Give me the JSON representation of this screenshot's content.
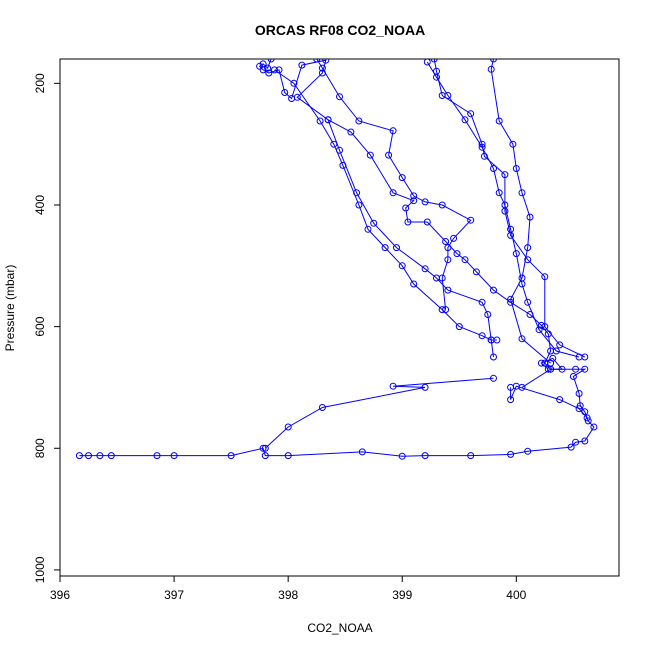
{
  "chart_data": {
    "type": "line",
    "title": "ORCAS RF08 CO2_NOAA",
    "xlabel": "CO2_NOAA",
    "ylabel": "Pressure (mbar)",
    "xlim": [
      396.0,
      400.9
    ],
    "ylim": [
      1010,
      160
    ],
    "y_reversed": true,
    "xticks": [
      396,
      397,
      398,
      399,
      400
    ],
    "xtick_labels": [
      "396",
      "397",
      "398",
      "399",
      "400"
    ],
    "yticks": [
      200,
      400,
      600,
      800,
      1000
    ],
    "ytick_labels": [
      "200",
      "400",
      "600",
      "800",
      "1000"
    ],
    "grid": false,
    "legend": "none",
    "series_color": "#0000ff",
    "marker": "open-circle",
    "points": [
      [
        397.85,
        160
      ],
      [
        397.82,
        175
      ],
      [
        397.78,
        168
      ],
      [
        397.75,
        172
      ],
      [
        397.78,
        178
      ],
      [
        397.83,
        183
      ],
      [
        397.92,
        178
      ],
      [
        397.97,
        215
      ],
      [
        398.03,
        225
      ],
      [
        398.12,
        170
      ],
      [
        398.33,
        162
      ],
      [
        398.3,
        183
      ],
      [
        398.08,
        223
      ],
      [
        398.35,
        260
      ],
      [
        398.55,
        280
      ],
      [
        398.72,
        318
      ],
      [
        398.92,
        380
      ],
      [
        399.1,
        393
      ],
      [
        399.03,
        405
      ],
      [
        399.05,
        428
      ],
      [
        399.22,
        428
      ],
      [
        399.38,
        460
      ],
      [
        399.48,
        480
      ],
      [
        399.55,
        490
      ],
      [
        399.65,
        510
      ],
      [
        399.8,
        540
      ],
      [
        399.95,
        560
      ],
      [
        400.12,
        580
      ],
      [
        400.22,
        598
      ],
      [
        400.28,
        612
      ],
      [
        400.3,
        640
      ],
      [
        400.25,
        660
      ],
      [
        400.3,
        670
      ],
      [
        400.52,
        670
      ],
      [
        400.6,
        670
      ],
      [
        400.5,
        682
      ],
      [
        400.55,
        710
      ],
      [
        400.56,
        730
      ],
      [
        400.6,
        740
      ],
      [
        400.63,
        755
      ],
      [
        400.68,
        765
      ],
      [
        400.6,
        788
      ],
      [
        400.52,
        790
      ],
      [
        400.48,
        798
      ],
      [
        400.1,
        805
      ],
      [
        399.95,
        810
      ],
      [
        399.6,
        812
      ],
      [
        399.2,
        812
      ],
      [
        399.0,
        813
      ],
      [
        398.65,
        806
      ],
      [
        398.0,
        812
      ],
      [
        397.8,
        812
      ],
      [
        397.78,
        800
      ],
      [
        397.5,
        812
      ],
      [
        397.0,
        812
      ],
      [
        396.85,
        812
      ],
      [
        396.45,
        812
      ],
      [
        396.35,
        812
      ],
      [
        396.25,
        812
      ],
      [
        396.17,
        812
      ]
    ],
    "profile_lines": [
      [
        [
          400.55,
          650
        ],
        [
          400.35,
          640
        ],
        [
          400.2,
          605
        ],
        [
          400.1,
          560
        ],
        [
          400.05,
          530
        ],
        [
          400.0,
          480
        ],
        [
          399.95,
          440
        ],
        [
          399.9,
          400
        ],
        [
          399.85,
          380
        ],
        [
          399.8,
          340
        ],
        [
          399.7,
          305
        ],
        [
          399.55,
          260
        ],
        [
          399.4,
          220
        ],
        [
          399.3,
          190
        ],
        [
          399.22,
          165
        ]
      ],
      [
        [
          400.3,
          660
        ],
        [
          400.05,
          620
        ],
        [
          399.95,
          555
        ],
        [
          400.05,
          520
        ],
        [
          400.1,
          470
        ],
        [
          400.12,
          420
        ],
        [
          400.05,
          380
        ],
        [
          400.0,
          340
        ],
        [
          399.97,
          300
        ],
        [
          399.85,
          262
        ],
        [
          399.78,
          177
        ],
        [
          399.8,
          160
        ]
      ],
      [
        [
          400.6,
          650
        ],
        [
          400.38,
          630
        ],
        [
          400.25,
          600
        ],
        [
          400.25,
          518
        ],
        [
          400.1,
          490
        ],
        [
          399.95,
          450
        ],
        [
          399.9,
          410
        ],
        [
          399.9,
          350
        ],
        [
          399.72,
          320
        ],
        [
          399.7,
          300
        ],
        [
          399.6,
          250
        ],
        [
          399.35,
          220
        ],
        [
          399.3,
          180
        ],
        [
          399.28,
          160
        ]
      ],
      [
        [
          399.95,
          700
        ],
        [
          399.95,
          720
        ],
        [
          400.0,
          698
        ],
        [
          400.38,
          720
        ],
        [
          400.55,
          735
        ],
        [
          400.62,
          750
        ]
      ],
      [
        [
          399.8,
          685
        ],
        [
          398.92,
          698
        ],
        [
          399.2,
          700
        ],
        [
          398.3,
          733
        ],
        [
          398.0,
          765
        ],
        [
          397.8,
          800
        ]
      ],
      [
        [
          399.38,
          572
        ],
        [
          399.35,
          520
        ],
        [
          399.4,
          490
        ],
        [
          399.4,
          470
        ],
        [
          399.45,
          455
        ],
        [
          399.6,
          425
        ],
        [
          399.35,
          400
        ],
        [
          399.2,
          395
        ],
        [
          399.1,
          385
        ],
        [
          399.0,
          355
        ],
        [
          398.88,
          318
        ],
        [
          398.92,
          278
        ],
        [
          398.62,
          262
        ],
        [
          398.45,
          222
        ],
        [
          398.3,
          175
        ],
        [
          398.25,
          160
        ]
      ],
      [
        [
          399.83,
          622
        ],
        [
          399.78,
          622
        ],
        [
          399.7,
          615
        ],
        [
          399.5,
          600
        ],
        [
          399.35,
          572
        ],
        [
          399.1,
          530
        ],
        [
          399.0,
          500
        ],
        [
          398.85,
          470
        ],
        [
          398.7,
          440
        ],
        [
          398.62,
          400
        ],
        [
          398.48,
          335
        ],
        [
          398.4,
          300
        ],
        [
          398.28,
          262
        ],
        [
          398.05,
          200
        ],
        [
          397.88,
          178
        ]
      ],
      [
        [
          399.8,
          650
        ],
        [
          399.78,
          622
        ],
        [
          399.75,
          580
        ],
        [
          399.7,
          560
        ],
        [
          399.4,
          540
        ],
        [
          399.3,
          520
        ],
        [
          399.2,
          505
        ],
        [
          398.95,
          470
        ],
        [
          398.75,
          430
        ],
        [
          398.6,
          380
        ],
        [
          398.45,
          310
        ],
        [
          398.35,
          260
        ]
      ],
      [
        [
          400.05,
          700
        ],
        [
          400.3,
          670
        ],
        [
          400.4,
          670
        ],
        [
          400.32,
          652
        ],
        [
          400.22,
          660
        ],
        [
          400.28,
          670
        ]
      ]
    ]
  }
}
